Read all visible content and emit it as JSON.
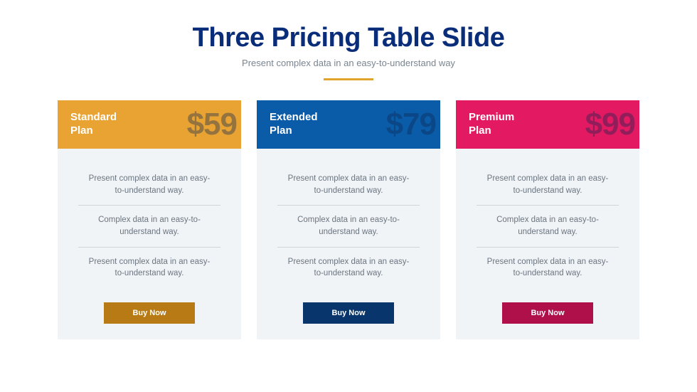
{
  "title": "Three Pricing Table Slide",
  "subtitle": "Present complex data in an easy-to-understand way",
  "colors": {
    "title": "#0a2d7a",
    "subtitle": "#7a8590",
    "underline": "#e2a32b",
    "body_bg": "#f1f4f7",
    "feature_text": "#6b7580",
    "price_text": "#0d2750"
  },
  "cards": [
    {
      "plan_name": "Standard\nPlan",
      "price": "$59",
      "header_bg": "#e8a333",
      "button_bg": "#b87a15",
      "features": [
        "Present complex data in an easy-to-understand way.",
        "Complex data in an easy-to-understand way.",
        "Present complex data in an easy-to-understand way."
      ],
      "button_label": "Buy Now"
    },
    {
      "plan_name": "Extended\nPlan",
      "price": "$79",
      "header_bg": "#0a5ca8",
      "button_bg": "#08356b",
      "features": [
        "Present complex data in an easy-to-understand way.",
        "Complex data in an easy-to-understand way.",
        "Present complex data in an easy-to-understand way."
      ],
      "button_label": "Buy Now"
    },
    {
      "plan_name": "Premium\nPlan",
      "price": "$99",
      "header_bg": "#e31a62",
      "button_bg": "#b0104a",
      "features": [
        "Present complex data in an easy-to-understand way.",
        "Complex data in an easy-to-understand way.",
        "Present complex data in an easy-to-understand way."
      ],
      "button_label": "Buy Now"
    }
  ]
}
